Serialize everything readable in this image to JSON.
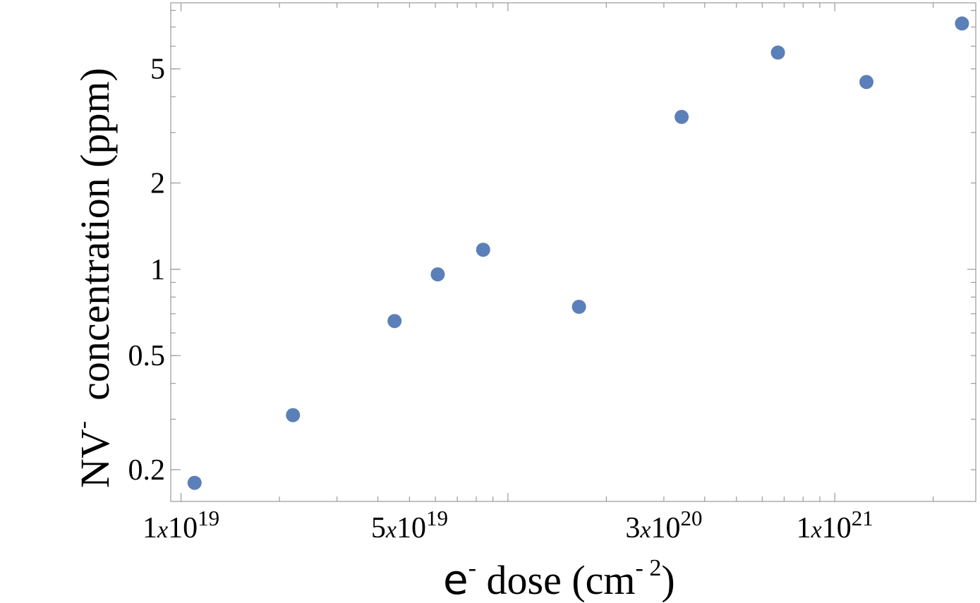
{
  "chart_data": {
    "type": "scatter",
    "x_scale": "log",
    "y_scale": "log",
    "xlim": [
      9.3e+18,
      2.7e+21
    ],
    "ylim": [
      0.155,
      8.5
    ],
    "xlabel": {
      "base": "e",
      "sup": "-",
      "text": " dose (cm",
      "sup2": "- 2",
      "close": ")"
    },
    "ylabel": {
      "base": "NV",
      "sup": "-",
      "text": "  concentration (ppm)"
    },
    "x_ticks": [
      {
        "value": 1e+19,
        "mant": "1",
        "times": "x",
        "base": "10",
        "exp": "19"
      },
      {
        "value": 5e+19,
        "mant": "5",
        "times": "x",
        "base": "10",
        "exp": "19"
      },
      {
        "value": 3e+20,
        "mant": "3",
        "times": "x",
        "base": "10",
        "exp": "20"
      },
      {
        "value": 1e+21,
        "mant": "1",
        "times": "x",
        "base": "10",
        "exp": "21"
      }
    ],
    "y_ticks": [
      {
        "value": 0.2,
        "label": "0.2"
      },
      {
        "value": 0.5,
        "label": "0.5"
      },
      {
        "value": 1,
        "label": "1"
      },
      {
        "value": 2,
        "label": "2"
      },
      {
        "value": 5,
        "label": "5"
      }
    ],
    "point_color": "#5b7fb8",
    "points": [
      {
        "x": 1.1e+19,
        "y": 0.18
      },
      {
        "x": 2.2e+19,
        "y": 0.31
      },
      {
        "x": 4.5e+19,
        "y": 0.66
      },
      {
        "x": 6.1e+19,
        "y": 0.96
      },
      {
        "x": 8.4e+19,
        "y": 1.17
      },
      {
        "x": 1.65e+20,
        "y": 0.74
      },
      {
        "x": 3.4e+20,
        "y": 3.4
      },
      {
        "x": 6.7e+20,
        "y": 5.7
      },
      {
        "x": 1.25e+21,
        "y": 4.5
      },
      {
        "x": 2.45e+21,
        "y": 7.2
      }
    ]
  }
}
